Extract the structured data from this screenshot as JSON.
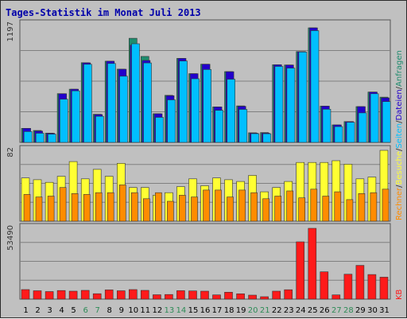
{
  "title": "Tages-Statistik im Monat Juli 2013",
  "colors": {
    "background": "#c0c0c0",
    "panel": "#c0c0c0",
    "gridline": "#808080",
    "title": "#0000aa",
    "axis_text": "#333333",
    "weekend_day": "#2e8b57",
    "weekday_day": "#000000",
    "anfragen": "#1e8c6e",
    "dateien": "#2200cc",
    "seiten": "#00bfff",
    "besuche": "#ffff33",
    "rechner": "#ff8c00",
    "kb": "#ff1a1a"
  },
  "chart_data": [
    {
      "type": "bar",
      "panel": "top",
      "ymax_label": "1197",
      "ylim": [
        0,
        1197
      ],
      "categories": [
        "1",
        "2",
        "3",
        "4",
        "5",
        "6",
        "7",
        "8",
        "9",
        "10",
        "11",
        "12",
        "13",
        "14",
        "15",
        "16",
        "17",
        "18",
        "19",
        "20",
        "21",
        "22",
        "23",
        "24",
        "25",
        "26",
        "27",
        "28",
        "29",
        "30",
        "31"
      ],
      "weekend_days": [
        "6",
        "7",
        "13",
        "14",
        "20",
        "21",
        "27",
        "28"
      ],
      "series": [
        {
          "name": "Anfragen",
          "color_key": "anfragen",
          "values": [
            143,
            121,
            95,
            496,
            541,
            810,
            286,
            826,
            745,
            1059,
            874,
            292,
            479,
            854,
            699,
            795,
            361,
            720,
            371,
            98,
            100,
            789,
            787,
            924,
            1165,
            369,
            178,
            212,
            364,
            512,
            460
          ]
        },
        {
          "name": "Dateien",
          "color_key": "dateien",
          "values": [
            143,
            115,
            92,
            495,
            541,
            809,
            283,
            826,
            744,
            989,
            833,
            291,
            475,
            854,
            699,
            795,
            361,
            719,
            367,
            95,
            95,
            789,
            787,
            924,
            1165,
            369,
            178,
            212,
            364,
            512,
            453
          ]
        },
        {
          "name": "Seiten",
          "color_key": "seiten",
          "values": [
            110,
            93,
            84,
            439,
            524,
            794,
            265,
            802,
            673,
            1003,
            808,
            255,
            433,
            827,
            647,
            741,
            326,
            642,
            336,
            89,
            88,
            772,
            755,
            919,
            1136,
            337,
            161,
            205,
            300,
            495,
            415
          ]
        }
      ],
      "legend": [
        "Anfragen",
        "/",
        "Dateien",
        "/",
        "Seiten",
        "/",
        "Besuche",
        "/",
        "Rechner",
        "/",
        "KB"
      ]
    },
    {
      "type": "bar",
      "panel": "middle",
      "ymax_label": "82",
      "ylim": [
        0,
        82
      ],
      "categories": [
        "1",
        "2",
        "3",
        "4",
        "5",
        "6",
        "7",
        "8",
        "9",
        "10",
        "11",
        "12",
        "13",
        "14",
        "15",
        "16",
        "17",
        "18",
        "19",
        "20",
        "21",
        "22",
        "23",
        "24",
        "25",
        "26",
        "27",
        "28",
        "29",
        "30",
        "31"
      ],
      "series": [
        {
          "name": "Besuche",
          "color_key": "besuche",
          "values": [
            50,
            48,
            45,
            52,
            69,
            49,
            60,
            52,
            67,
            39,
            39,
            30,
            33,
            40,
            49,
            41,
            50,
            48,
            46,
            53,
            34,
            39,
            46,
            68,
            68,
            68,
            70,
            66,
            49,
            51,
            82
          ]
        },
        {
          "name": "Rechner",
          "color_key": "rechner",
          "values": [
            31,
            28,
            29,
            39,
            32,
            31,
            33,
            33,
            42,
            33,
            26,
            33,
            23,
            30,
            28,
            36,
            36,
            28,
            36,
            33,
            26,
            29,
            35,
            27,
            37,
            29,
            34,
            25,
            32,
            33,
            37
          ]
        }
      ]
    },
    {
      "type": "bar",
      "panel": "bottom",
      "ymax_label": "53490",
      "ylim": [
        0,
        53490
      ],
      "categories": [
        "1",
        "2",
        "3",
        "4",
        "5",
        "6",
        "7",
        "8",
        "9",
        "10",
        "11",
        "12",
        "13",
        "14",
        "15",
        "16",
        "17",
        "18",
        "19",
        "20",
        "21",
        "22",
        "23",
        "24",
        "25",
        "26",
        "27",
        "28",
        "29",
        "30",
        "31"
      ],
      "series": [
        {
          "name": "KB",
          "color_key": "kb",
          "values": [
            7200,
            6300,
            5700,
            6500,
            6000,
            6600,
            4100,
            7000,
            6300,
            7200,
            6600,
            3300,
            3500,
            6400,
            6200,
            6000,
            3200,
            5200,
            4000,
            3000,
            1800,
            6000,
            7100,
            43300,
            53490,
            20600,
            3200,
            18800,
            25500,
            18600,
            16600
          ]
        }
      ]
    }
  ]
}
